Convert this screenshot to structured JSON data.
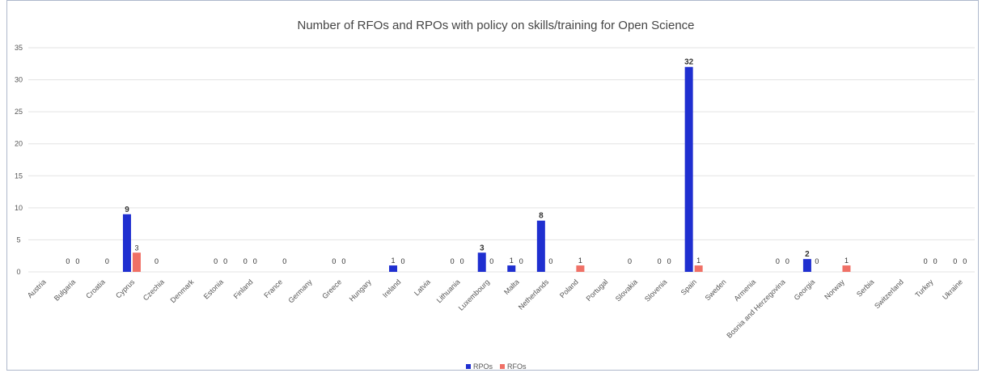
{
  "chart_data": {
    "type": "bar",
    "title": "Number of RFOs and RPOs with policy on skills/training for Open Science",
    "xlabel": "",
    "ylabel": "",
    "ylim": [
      0,
      35
    ],
    "yticks": [
      0,
      5,
      10,
      15,
      20,
      25,
      30,
      35
    ],
    "grid": true,
    "legend_position": "bottom",
    "categories": [
      "Austria",
      "Bulgaria",
      "Croatia",
      "Cyprus",
      "Czechia",
      "Denmark",
      "Estonia",
      "Finland",
      "France",
      "Germany",
      "Greece",
      "Hungary",
      "Ireland",
      "Latvia",
      "Lithuania",
      "Luxembourg",
      "Malta",
      "Netherlands",
      "Poland",
      "Portugal",
      "Slovakia",
      "Slovenia",
      "Spain",
      "Sweden",
      "Armenia",
      "Bosnia and Herzegovina",
      "Georgia",
      "Norway",
      "Serbia",
      "Switzerland",
      "Turkey",
      "Ukraine"
    ],
    "series": [
      {
        "name": "RPOs",
        "color": "#1f2fd0",
        "values": [
          null,
          0,
          null,
          9,
          0,
          null,
          0,
          0,
          null,
          null,
          0,
          null,
          1,
          null,
          0,
          3,
          1,
          8,
          null,
          null,
          0,
          0,
          32,
          null,
          null,
          0,
          2,
          null,
          null,
          null,
          0,
          0
        ]
      },
      {
        "name": "RFOs",
        "color": "#f07066",
        "values": [
          null,
          0,
          0,
          3,
          null,
          null,
          0,
          0,
          0,
          null,
          0,
          null,
          0,
          null,
          0,
          0,
          0,
          0,
          1,
          null,
          null,
          0,
          1,
          null,
          null,
          0,
          0,
          1,
          null,
          null,
          0,
          0
        ]
      }
    ]
  }
}
